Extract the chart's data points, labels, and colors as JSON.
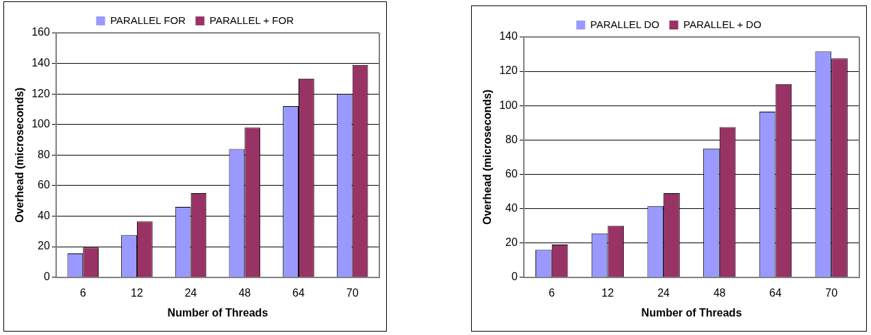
{
  "chart_data": [
    {
      "type": "bar",
      "xlabel": "Number of Threads",
      "ylabel": "Overhead (microseconds)",
      "categories": [
        "6",
        "12",
        "24",
        "48",
        "64",
        "70"
      ],
      "series": [
        {
          "name": "PARALLEL FOR",
          "color": "#9999ff",
          "values": [
            15.5,
            27.5,
            46,
            84,
            112,
            120
          ]
        },
        {
          "name": "PARALLEL + FOR",
          "color": "#993366",
          "values": [
            19.5,
            36.5,
            55,
            98,
            130,
            139
          ]
        }
      ],
      "ylim": [
        0,
        160
      ],
      "yticks": [
        0,
        20,
        40,
        60,
        80,
        100,
        120,
        140,
        160
      ],
      "grid": "y",
      "legend": "top"
    },
    {
      "type": "bar",
      "xlabel": "Number of Threads",
      "ylabel": "Overhead (microseconds)",
      "categories": [
        "6",
        "12",
        "24",
        "48",
        "64",
        "70"
      ],
      "series": [
        {
          "name": "PARALLEL DO",
          "color": "#9999ff",
          "values": [
            16,
            25.5,
            41.5,
            75,
            96.5,
            131.5
          ]
        },
        {
          "name": "PARALLEL + DO",
          "color": "#993366",
          "values": [
            19,
            30,
            49,
            87.5,
            112.5,
            127.5
          ]
        }
      ],
      "ylim": [
        0,
        140
      ],
      "yticks": [
        0,
        20,
        40,
        60,
        80,
        100,
        120,
        140
      ],
      "grid": "y",
      "legend": "top"
    }
  ]
}
